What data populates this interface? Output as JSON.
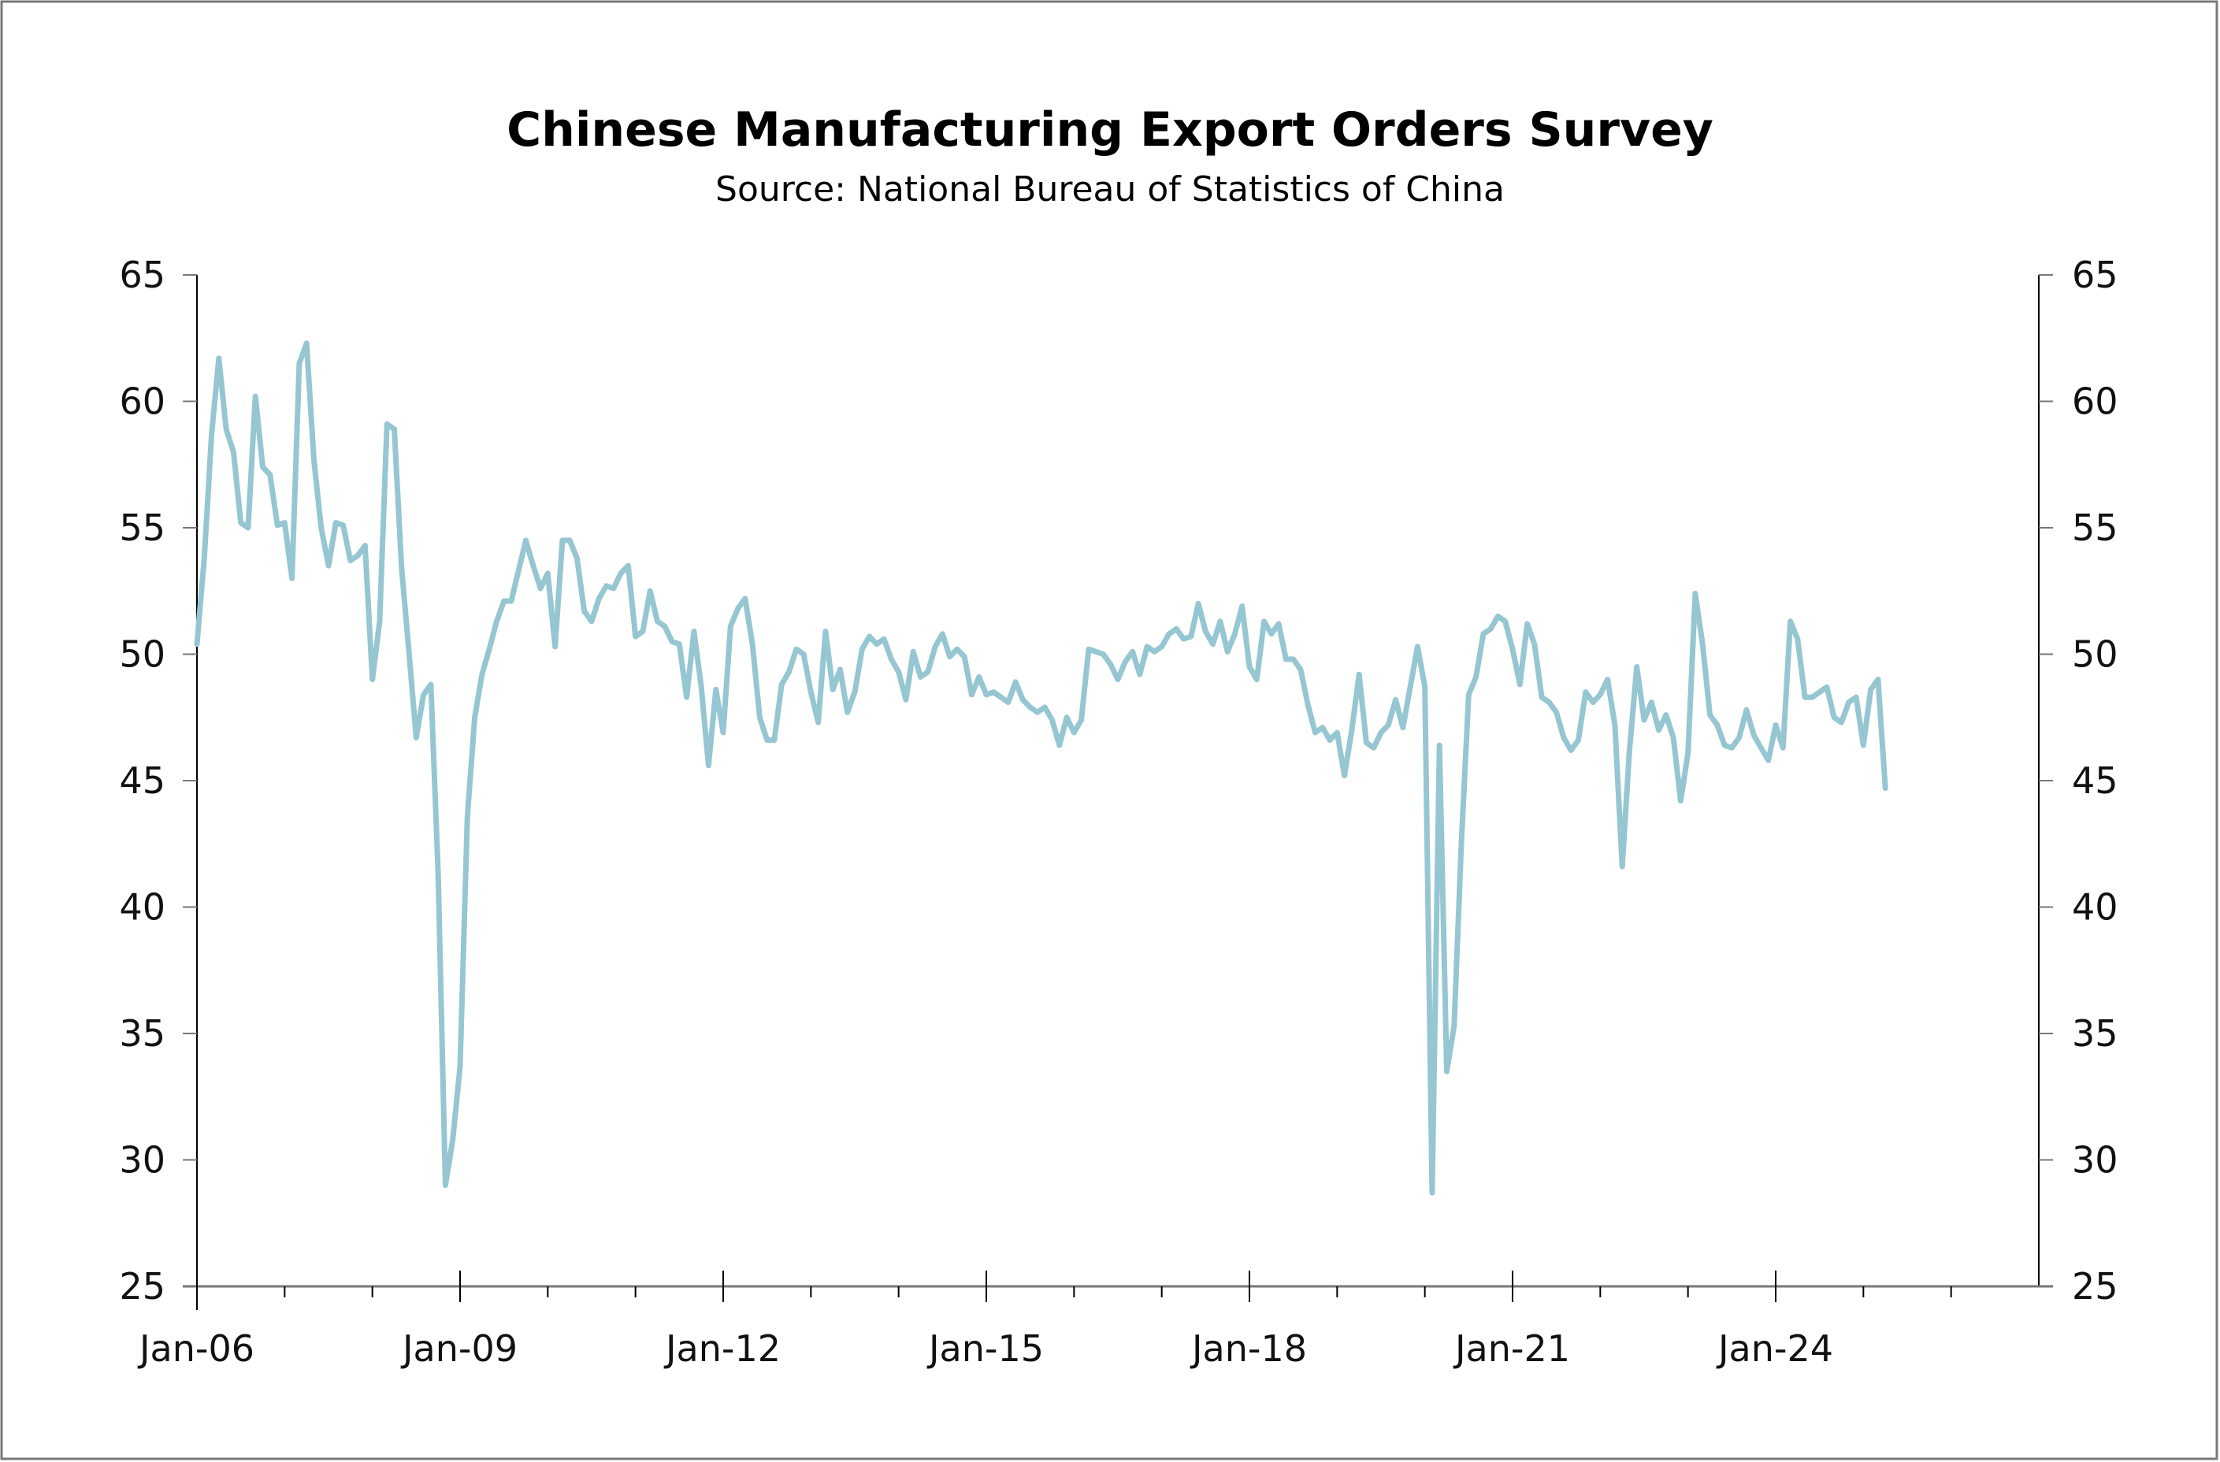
{
  "chart_data": {
    "type": "line",
    "title": "Chinese Manufacturing Export Orders Survey",
    "subtitle": "Source: National Bureau of Statistics of China",
    "xlabel": "",
    "ylabel": "",
    "x_start": "2006-01",
    "x_frequency": "monthly",
    "xlim": [
      "2006-01",
      "2027-01"
    ],
    "ylim": [
      25,
      65
    ],
    "y_ticks": [
      25,
      30,
      35,
      40,
      45,
      50,
      55,
      60,
      65
    ],
    "x_tick_labels": [
      "Jan-06",
      "Jan-09",
      "Jan-12",
      "Jan-15",
      "Jan-18",
      "Jan-21",
      "Jan-24"
    ],
    "y_axis_left_and_right": true,
    "grid": false,
    "legend": "none",
    "line_color": "#96c6d2",
    "series": [
      {
        "values": [
          50.4,
          53.8,
          58.7,
          61.7,
          58.9,
          58.0,
          55.2,
          55.0,
          60.2,
          57.4,
          57.1,
          55.1,
          55.2,
          53.0,
          61.5,
          62.3,
          57.7,
          55.0,
          53.5,
          55.2,
          55.1,
          53.7,
          53.9,
          54.3,
          49.0,
          51.3,
          59.1,
          58.9,
          53.4,
          50.1,
          46.7,
          48.4,
          48.8,
          41.3,
          29.0,
          30.8,
          33.7,
          43.6,
          47.5,
          49.2,
          50.2,
          51.3,
          52.1,
          52.1,
          53.3,
          54.5,
          53.5,
          52.6,
          53.2,
          50.3,
          54.5,
          54.5,
          53.8,
          51.7,
          51.3,
          52.2,
          52.7,
          52.6,
          53.2,
          53.5,
          50.7,
          50.9,
          52.5,
          51.3,
          51.1,
          50.5,
          50.4,
          48.3,
          50.9,
          48.7,
          45.6,
          48.6,
          46.9,
          51.1,
          51.8,
          52.2,
          50.4,
          47.5,
          46.6,
          46.6,
          48.8,
          49.3,
          50.2,
          50.0,
          48.5,
          47.3,
          50.9,
          48.6,
          49.4,
          47.7,
          48.5,
          50.2,
          50.7,
          50.4,
          50.6,
          49.8,
          49.3,
          48.2,
          50.1,
          49.1,
          49.3,
          50.3,
          50.8,
          49.9,
          50.2,
          49.9,
          48.4,
          49.1,
          48.4,
          48.5,
          48.3,
          48.1,
          48.9,
          48.2,
          47.9,
          47.7,
          47.9,
          47.4,
          46.4,
          47.5,
          46.9,
          47.4,
          50.2,
          50.1,
          50.0,
          49.6,
          49.0,
          49.7,
          50.1,
          49.2,
          50.3,
          50.1,
          50.3,
          50.8,
          51.0,
          50.6,
          50.7,
          52.0,
          50.9,
          50.4,
          51.3,
          50.1,
          50.8,
          51.9,
          49.5,
          49.0,
          51.3,
          50.8,
          51.2,
          49.8,
          49.8,
          49.4,
          48.0,
          46.9,
          47.1,
          46.6,
          46.9,
          45.2,
          47.0,
          49.2,
          46.5,
          46.3,
          46.9,
          47.2,
          48.2,
          47.1,
          48.7,
          50.3,
          48.7,
          28.7,
          46.4,
          33.5,
          35.3,
          42.6,
          48.4,
          49.1,
          50.8,
          51.0,
          51.5,
          51.3,
          50.2,
          48.8,
          51.2,
          50.4,
          48.3,
          48.1,
          47.7,
          46.7,
          46.2,
          46.6,
          48.5,
          48.1,
          48.4,
          49.0,
          47.2,
          41.6,
          46.2,
          49.5,
          47.4,
          48.1,
          47.0,
          47.6,
          46.7,
          44.2,
          46.1,
          52.4,
          50.4,
          47.6,
          47.2,
          46.4,
          46.3,
          46.7,
          47.8,
          46.8,
          46.3,
          45.8,
          47.2,
          46.3,
          51.3,
          50.6,
          48.3,
          48.3,
          48.5,
          48.7,
          47.5,
          47.3,
          48.1,
          48.3,
          46.4,
          48.6,
          49.0,
          44.7
        ]
      }
    ]
  }
}
